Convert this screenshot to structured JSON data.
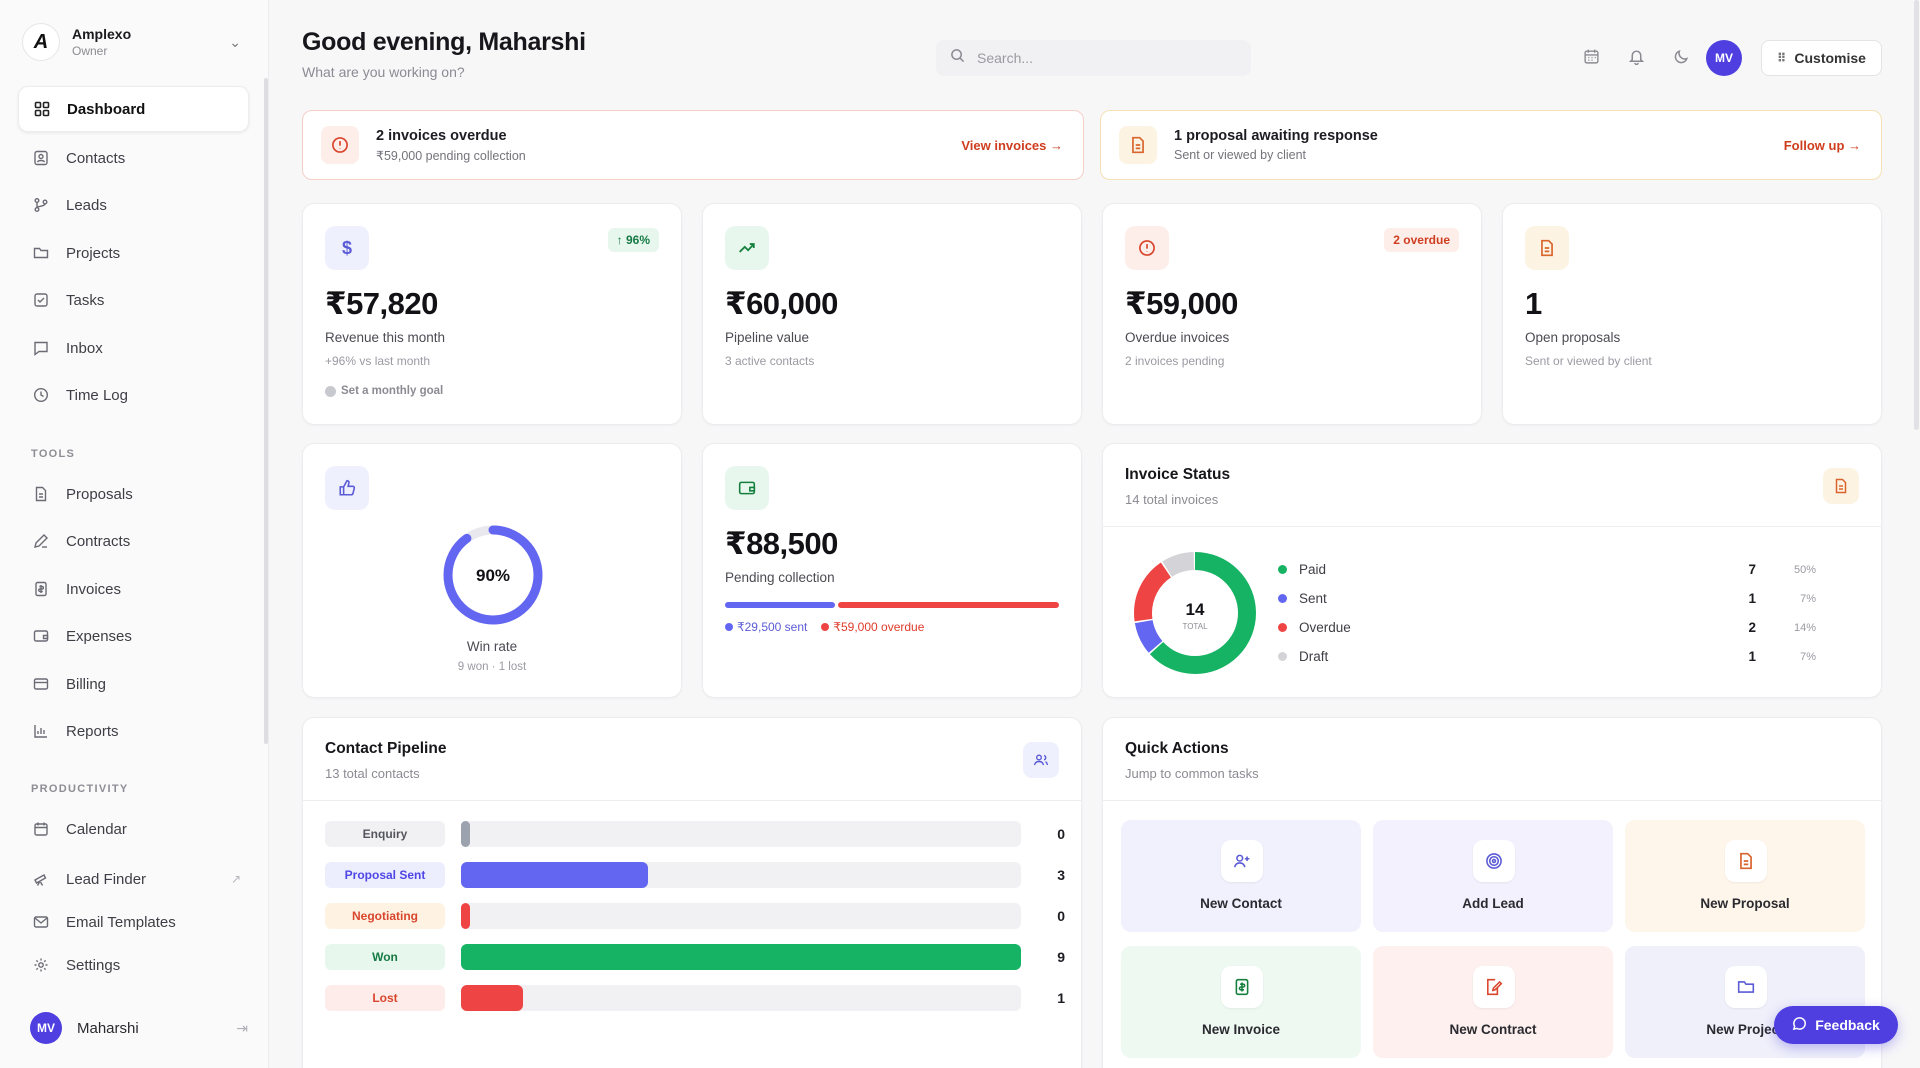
{
  "brand": {
    "name": "Amplexo",
    "role": "Owner"
  },
  "nav": {
    "main": [
      {
        "label": "Dashboard",
        "icon": "grid-icon"
      },
      {
        "label": "Contacts",
        "icon": "contact-card-icon"
      },
      {
        "label": "Leads",
        "icon": "branch-icon"
      },
      {
        "label": "Projects",
        "icon": "folder-icon"
      },
      {
        "label": "Tasks",
        "icon": "checkbox-icon"
      },
      {
        "label": "Inbox",
        "icon": "chat-icon"
      },
      {
        "label": "Time Log",
        "icon": "clock-icon"
      }
    ],
    "tools_title": "TOOLS",
    "tools": [
      {
        "label": "Proposals",
        "icon": "document-icon"
      },
      {
        "label": "Contracts",
        "icon": "pen-icon"
      },
      {
        "label": "Invoices",
        "icon": "receipt-icon"
      },
      {
        "label": "Expenses",
        "icon": "wallet-icon"
      },
      {
        "label": "Billing",
        "icon": "credit-card-icon"
      },
      {
        "label": "Reports",
        "icon": "bar-chart-icon"
      }
    ],
    "productivity_title": "PRODUCTIVITY",
    "productivity": [
      {
        "label": "Calendar",
        "icon": "calendar-icon"
      },
      {
        "label": "Lead Finder",
        "icon": "telescope-icon"
      },
      {
        "label": "Email Templates",
        "icon": "mail-icon"
      },
      {
        "label": "Settings",
        "icon": "gear-icon"
      }
    ]
  },
  "user": {
    "initials": "MV",
    "name": "Maharshi"
  },
  "header": {
    "greeting": "Good evening, Maharshi",
    "subtitle": "What are you working on?",
    "search_placeholder": "Search...",
    "avatar": "MV",
    "customise": "Customise"
  },
  "alerts": [
    {
      "title": "2 invoices overdue",
      "sub": "₹59,000 pending collection",
      "link": "View invoices →"
    },
    {
      "title": "1 proposal awaiting response",
      "sub": "Sent or viewed by client",
      "link": "Follow up →"
    }
  ],
  "stats": {
    "revenue": {
      "value": "₹57,820",
      "label": "Revenue this month",
      "sub": "+96% vs last month",
      "badge": "↑ 96%",
      "goal": "Set a monthly goal"
    },
    "pipeline": {
      "value": "₹60,000",
      "label": "Pipeline value",
      "sub": "3 active contacts"
    },
    "overdue": {
      "value": "₹59,000",
      "label": "Overdue invoices",
      "sub": "2 invoices pending",
      "badge": "2 overdue"
    },
    "proposals": {
      "value": "1",
      "label": "Open proposals",
      "sub": "Sent or viewed by client"
    }
  },
  "winrate": {
    "value": "90%",
    "fraction": 0.9,
    "label": "Win rate",
    "sub": "9 won · 1 lost"
  },
  "pending": {
    "value": "₹88,500",
    "label": "Pending collection",
    "sent": "₹29,500 sent",
    "overdue": "₹59,000 overdue",
    "sent_amount": 29500,
    "overdue_amount": 59000
  },
  "invoice_status": {
    "title": "Invoice Status",
    "sub": "14 total invoices",
    "total": "14",
    "total_label": "TOTAL",
    "items": [
      {
        "label": "Paid",
        "count": 7,
        "pct": "50%",
        "color": "#16b364"
      },
      {
        "label": "Sent",
        "count": 1,
        "pct": "7%",
        "color": "#6366f1"
      },
      {
        "label": "Overdue",
        "count": 2,
        "pct": "14%",
        "color": "#ef4444"
      },
      {
        "label": "Draft",
        "count": 1,
        "pct": "7%",
        "color": "#d4d4d8"
      }
    ]
  },
  "pipeline_card": {
    "title": "Contact Pipeline",
    "sub": "13 total contacts",
    "max": 9,
    "rows": [
      {
        "label": "Enquiry",
        "count": 0,
        "color": "#9ca3af",
        "bg": "#f1f1f4",
        "fg": "#55555d"
      },
      {
        "label": "Proposal Sent",
        "count": 3,
        "color": "#6366f1",
        "bg": "#eceefe",
        "fg": "#4f46e5"
      },
      {
        "label": "Negotiating",
        "count": 0,
        "color": "#ef4444",
        "bg": "#fef3e2",
        "fg": "#d9462e"
      },
      {
        "label": "Won",
        "count": 9,
        "color": "#16b364",
        "bg": "#e8f7ee",
        "fg": "#157a43"
      },
      {
        "label": "Lost",
        "count": 1,
        "color": "#ef4444",
        "bg": "#fdecea",
        "fg": "#d9462e"
      }
    ]
  },
  "quick_actions": {
    "title": "Quick Actions",
    "sub": "Jump to common tasks",
    "items": [
      {
        "label": "New Contact",
        "icon": "user-plus-icon",
        "bg": "#f0f1fd",
        "color": "#5b5bd6"
      },
      {
        "label": "Add Lead",
        "icon": "target-icon",
        "bg": "#f3f1fd",
        "color": "#5b5bd6"
      },
      {
        "label": "New Proposal",
        "icon": "document-icon",
        "bg": "#fef6ea",
        "color": "#d9652e"
      },
      {
        "label": "New Invoice",
        "icon": "receipt-icon",
        "bg": "#eef9f1",
        "color": "#15803d"
      },
      {
        "label": "New Contract",
        "icon": "pen-doc-icon",
        "bg": "#fdf0ee",
        "color": "#d9462e"
      },
      {
        "label": "New Project",
        "icon": "folder-icon",
        "bg": "#eff0fa",
        "color": "#5b5bd6"
      }
    ]
  },
  "feedback": "Feedback"
}
